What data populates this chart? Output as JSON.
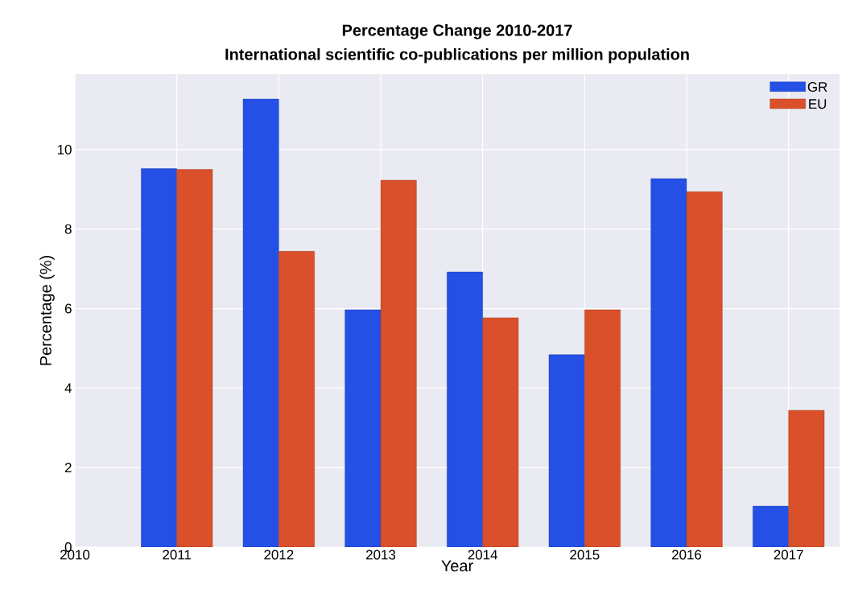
{
  "chart_data": {
    "type": "bar",
    "title": "Percentage Change 2010-2017",
    "subtitle": "International scientific co-publications per million population",
    "xlabel": "Year",
    "ylabel": "Percentage (%)",
    "x": [
      2011,
      2012,
      2013,
      2014,
      2015,
      2016,
      2017
    ],
    "series": [
      {
        "name": "GR",
        "color": "#2550e6",
        "values": [
          9.52,
          11.27,
          5.97,
          6.92,
          4.84,
          9.27,
          1.03
        ]
      },
      {
        "name": "EU",
        "color": "#d9502a",
        "values": [
          9.5,
          7.44,
          9.23,
          5.77,
          5.97,
          8.94,
          3.44
        ]
      }
    ],
    "xlim": [
      2010,
      2017.5
    ],
    "xticks": [
      2010,
      2011,
      2012,
      2013,
      2014,
      2015,
      2016,
      2017
    ],
    "ylim": [
      0,
      11.9
    ],
    "yticks": [
      0,
      2,
      4,
      6,
      8,
      10
    ],
    "grid": true,
    "legend": "top right"
  }
}
